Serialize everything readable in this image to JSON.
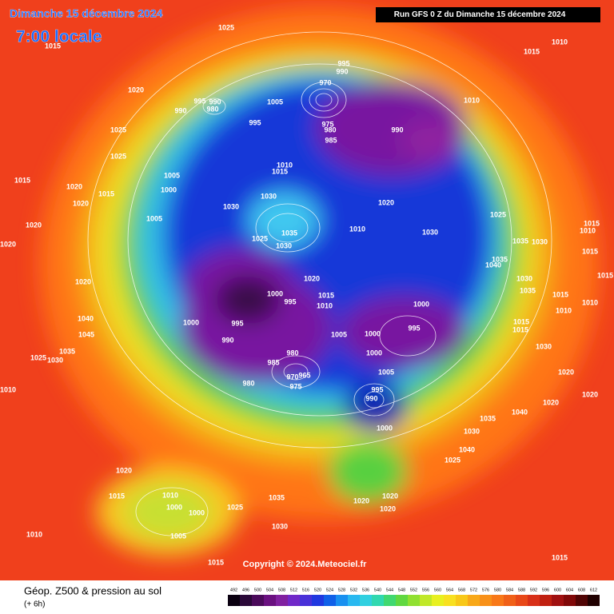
{
  "header": {
    "date": "Dimanche 15 décembre 2024",
    "time": "7:00 locale",
    "run": "Run GFS 0 Z du Dimanche 15 décembre 2024"
  },
  "isobar_labels": [
    "1025",
    "1015",
    "1010",
    "1015",
    "995",
    "990",
    "970",
    "1020",
    "995",
    "990",
    "980",
    "1005",
    "990",
    "1010",
    "995",
    "975",
    "980",
    "990",
    "985",
    "1025",
    "1025",
    "1010",
    "1015",
    "1005",
    "1015",
    "1020",
    "1015",
    "1000",
    "1030",
    "1020",
    "1020",
    "1030",
    "1005",
    "1025",
    "1035",
    "1010",
    "1030",
    "1020",
    "1025",
    "1030",
    "1035",
    "1030",
    "1015",
    "1010",
    "1020",
    "1015",
    "1035",
    "1040",
    "1020",
    "1030",
    "1035",
    "1015",
    "1020",
    "1000",
    "995",
    "1015",
    "1010",
    "1015",
    "1010",
    "1010",
    "1040",
    "1000",
    "995",
    "1000",
    "1015",
    "995",
    "1005",
    "1000",
    "1045",
    "1015",
    "990",
    "1000",
    "980",
    "1030",
    "1035",
    "1025",
    "1030",
    "985",
    "1005",
    "1020",
    "970",
    "965",
    "975",
    "980",
    "1010",
    "995",
    "990",
    "1020",
    "1020",
    "1040",
    "1035",
    "1000",
    "1030",
    "1040",
    "1025",
    "1020",
    "1010",
    "1015",
    "1035",
    "1020",
    "1020",
    "1000",
    "1000",
    "1025",
    "1020",
    "1030",
    "1005",
    "1010",
    "1015",
    "1015"
  ],
  "copyright": "Copyright © 2024.Meteociel.fr",
  "footer": {
    "title": "Géop. Z500 & pression au sol",
    "lead": "(+ 6h)"
  },
  "colorbar": [
    "492",
    "496",
    "500",
    "504",
    "508",
    "512",
    "516",
    "520",
    "524",
    "528",
    "532",
    "536",
    "540",
    "544",
    "548",
    "552",
    "556",
    "560",
    "564",
    "568",
    "572",
    "576",
    "580",
    "584",
    "588",
    "592",
    "596",
    "600",
    "604",
    "608",
    "612"
  ]
}
